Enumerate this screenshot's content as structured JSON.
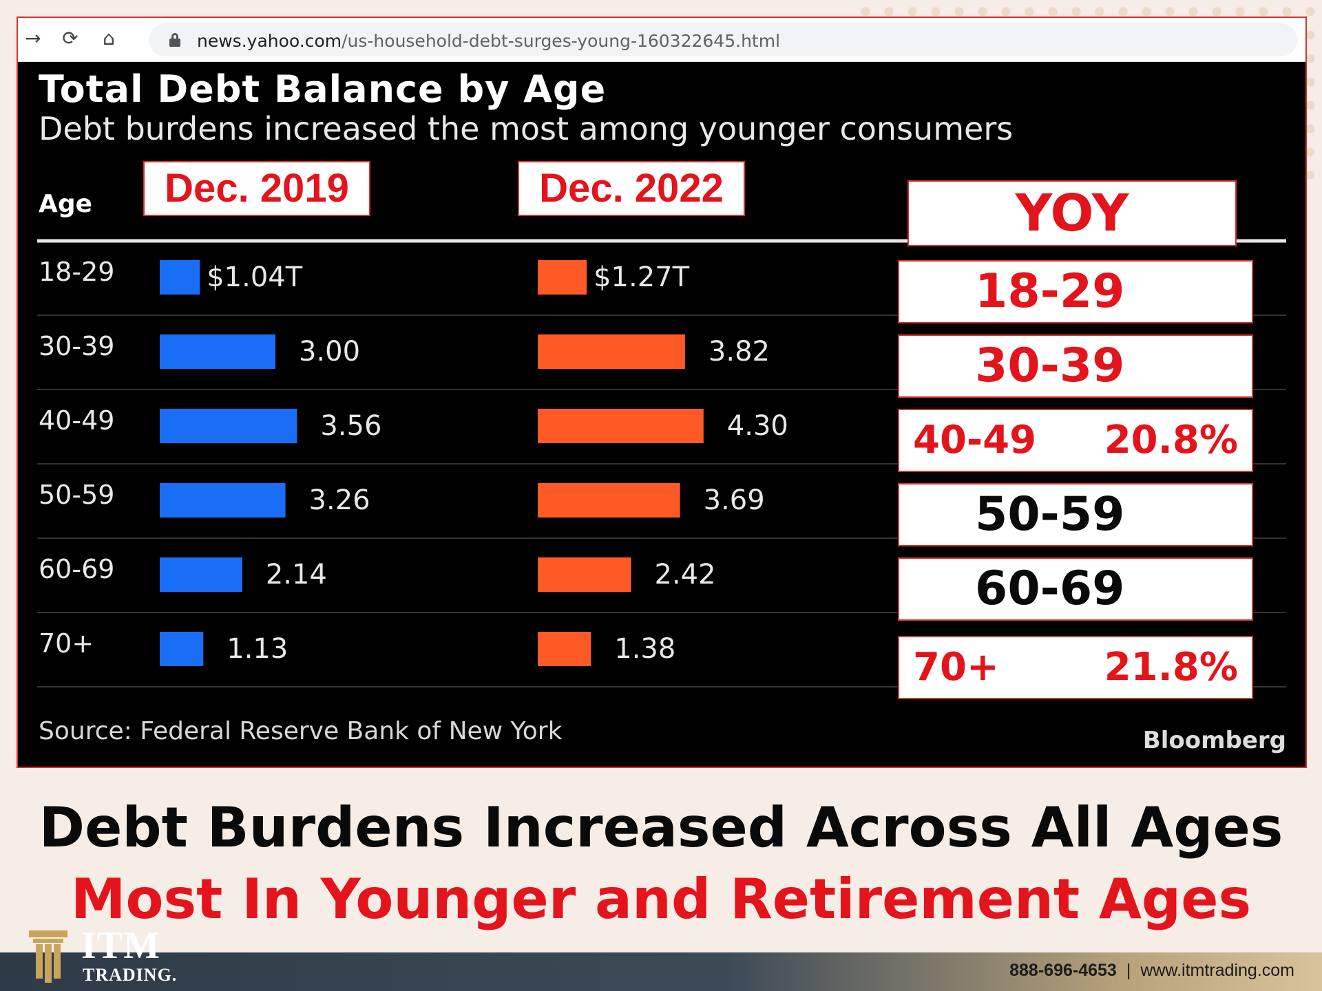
{
  "browser": {
    "url_host": "news.yahoo.com",
    "url_path": "/us-household-debt-surges-young-160322645.html"
  },
  "chart_data": {
    "type": "bar",
    "title": "Total Debt Balance by Age",
    "subtitle": "Debt burdens increased the most among younger consumers",
    "category_header": "Age",
    "categories": [
      "18-29",
      "30-39",
      "40-49",
      "50-59",
      "60-69",
      "70+"
    ],
    "series": [
      {
        "name": "Dec. 2019",
        "color": "#1a6ef5",
        "values": [
          1.04,
          3.0,
          3.56,
          3.26,
          2.14,
          1.13
        ],
        "labels": [
          "$1.04T",
          "3.00",
          "3.56",
          "3.26",
          "2.14",
          "1.13"
        ]
      },
      {
        "name": "Dec. 2022",
        "color": "#ff5a26",
        "values": [
          1.27,
          3.82,
          4.3,
          3.69,
          2.42,
          1.38
        ],
        "labels": [
          "$1.27T",
          "3.82",
          "4.30",
          "3.69",
          "2.42",
          "1.38"
        ]
      }
    ],
    "source": "Source: Federal Reserve Bank of New York",
    "brand": "Bloomberg"
  },
  "yoy": {
    "header": "YOY",
    "rows": [
      {
        "label": "18-29",
        "pct": "",
        "color": "#e3141b"
      },
      {
        "label": "30-39",
        "pct": "",
        "color": "#e3141b"
      },
      {
        "label": "40-49",
        "pct": "20.8%",
        "color": "#e3141b"
      },
      {
        "label": "50-59",
        "pct": "",
        "color": "#0a0a0a"
      },
      {
        "label": "60-69",
        "pct": "",
        "color": "#0a0a0a"
      },
      {
        "label": "70+",
        "pct": "21.8%",
        "color": "#e3141b"
      }
    ]
  },
  "headline": {
    "line1": "Debt Burdens Increased Across All Ages",
    "line2": "Most In Younger and Retirement Ages"
  },
  "footer": {
    "logo_line1": "ITM",
    "logo_line2": "TRADING.",
    "phone": "888-696-4653",
    "separator": "|",
    "website": "www.itmtrading.com"
  },
  "icons": [
    "back-arrow-icon",
    "reload-icon",
    "home-icon",
    "lock-icon"
  ]
}
